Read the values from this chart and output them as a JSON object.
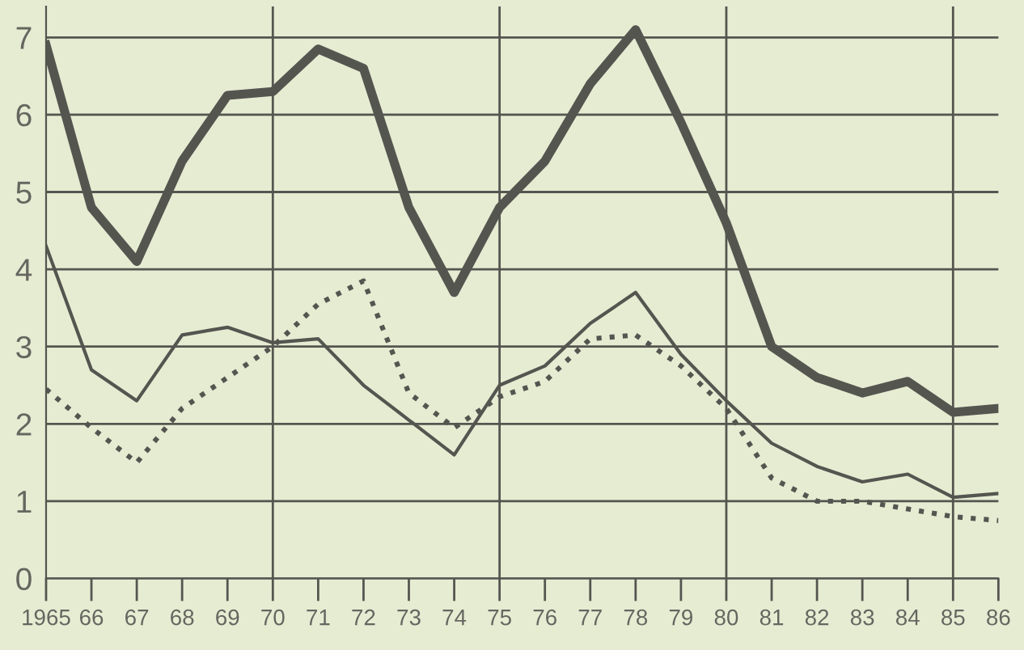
{
  "chart_data": {
    "type": "line",
    "x": [
      1965,
      1966,
      1967,
      1968,
      1969,
      1970,
      1971,
      1972,
      1973,
      1974,
      1975,
      1976,
      1977,
      1978,
      1979,
      1980,
      1981,
      1982,
      1983,
      1984,
      1985,
      1986
    ],
    "series": [
      {
        "color": "#555550",
        "line_style": "solid",
        "values": [
          6.9,
          4.8,
          4.1,
          5.4,
          6.25,
          6.3,
          6.85,
          6.6,
          4.8,
          3.7,
          4.8,
          5.4,
          6.4,
          7.1,
          5.9,
          4.6,
          3.0,
          2.6,
          2.4,
          2.55,
          2.15,
          2.2
        ]
      },
      {
        "color": "#555550",
        "line_style": "solid",
        "values": [
          4.3,
          2.7,
          2.3,
          3.15,
          3.25,
          3.05,
          3.1,
          2.5,
          2.05,
          1.6,
          2.5,
          2.75,
          3.3,
          3.7,
          2.9,
          2.3,
          1.75,
          1.45,
          1.25,
          1.35,
          1.05,
          1.1
        ]
      },
      {
        "color": "#555550",
        "line_style": "dotted",
        "values": [
          2.45,
          1.95,
          1.5,
          2.2,
          2.6,
          3.0,
          3.55,
          3.85,
          2.4,
          1.95,
          2.35,
          2.55,
          3.1,
          3.15,
          2.75,
          2.2,
          1.3,
          1.0,
          1.0,
          0.9,
          0.8,
          0.75
        ]
      }
    ],
    "xlim": [
      1965,
      1986
    ],
    "ylim": [
      0,
      7.4
    ],
    "xticks": [
      {
        "value": 1965,
        "label": "1965"
      },
      {
        "value": 1966,
        "label": "66"
      },
      {
        "value": 1967,
        "label": "67"
      },
      {
        "value": 1968,
        "label": "68"
      },
      {
        "value": 1969,
        "label": "69"
      },
      {
        "value": 1970,
        "label": "70"
      },
      {
        "value": 1971,
        "label": "71"
      },
      {
        "value": 1972,
        "label": "72"
      },
      {
        "value": 1973,
        "label": "73"
      },
      {
        "value": 1974,
        "label": "74"
      },
      {
        "value": 1975,
        "label": "75"
      },
      {
        "value": 1976,
        "label": "76"
      },
      {
        "value": 1977,
        "label": "77"
      },
      {
        "value": 1978,
        "label": "78"
      },
      {
        "value": 1979,
        "label": "79"
      },
      {
        "value": 1980,
        "label": "80"
      },
      {
        "value": 1981,
        "label": "81"
      },
      {
        "value": 1982,
        "label": "82"
      },
      {
        "value": 1983,
        "label": "83"
      },
      {
        "value": 1984,
        "label": "84"
      },
      {
        "value": 1985,
        "label": "85"
      },
      {
        "value": 1986,
        "label": "86"
      }
    ],
    "yticks": [
      0,
      1,
      2,
      3,
      4,
      5,
      6,
      7
    ],
    "grid": "y",
    "ref_lines": [
      {
        "axis": "x",
        "value": 1970,
        "label": null,
        "color": "#555550"
      },
      {
        "axis": "x",
        "value": 1975,
        "label": null,
        "color": "#555550"
      },
      {
        "axis": "x",
        "value": 1980,
        "label": null,
        "color": "#555550"
      },
      {
        "axis": "x",
        "value": 1985,
        "label": null,
        "color": "#555550"
      }
    ],
    "marker": "none"
  }
}
